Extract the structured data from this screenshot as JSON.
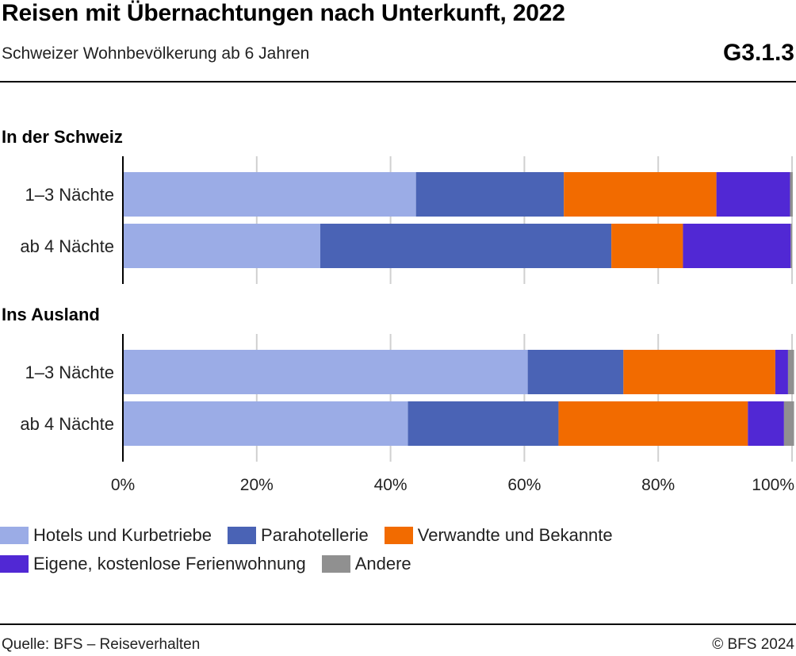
{
  "header": {
    "title": "Reisen mit Übernachtungen nach Unterkunft, 2022",
    "subtitle": "Schweizer Wohnbevölkerung ab 6 Jahren",
    "code": "G3.1.3"
  },
  "footer": {
    "source": "Quelle: BFS – Reiseverhalten",
    "copyright": "© BFS 2024"
  },
  "legend_rows": [
    [
      "Hotels und Kurbetriebe",
      "Parahotellerie",
      "Verwandte und Bekannte"
    ],
    [
      "Eigene, kostenlose Ferienwohnung",
      "Andere"
    ]
  ],
  "chart_data": {
    "type": "bar",
    "orientation": "horizontal",
    "stacked": true,
    "xlim": [
      0,
      100
    ],
    "ticks": [
      "0%",
      "20%",
      "40%",
      "60%",
      "80%",
      "100%"
    ],
    "tick_values": [
      0,
      20,
      40,
      60,
      80,
      100
    ],
    "grid": true,
    "legend_position": "bottom",
    "series_names": [
      "Hotels und Kurbetriebe",
      "Parahotellerie",
      "Verwandte und Bekannte",
      "Eigene, kostenlose Ferienwohnung",
      "Andere"
    ],
    "colors": [
      "#9BACE6",
      "#4A63B5",
      "#F26B00",
      "#5128D4",
      "#909090"
    ],
    "groups": [
      {
        "label": "In der Schweiz",
        "bars": [
          {
            "label": "1–3 Nächte",
            "values": [
              43.8,
              22.1,
              22.8,
              11.0,
              0.4
            ]
          },
          {
            "label": "ab 4 Nächte",
            "values": [
              29.5,
              43.5,
              10.7,
              16.1,
              0.2
            ]
          }
        ]
      },
      {
        "label": "Ins Ausland",
        "bars": [
          {
            "label": "1–3 Nächte",
            "values": [
              60.5,
              14.3,
              22.7,
              1.9,
              0.9
            ]
          },
          {
            "label": "ab 4 Nächte",
            "values": [
              42.6,
              22.5,
              28.3,
              5.4,
              1.5
            ]
          }
        ]
      }
    ]
  }
}
